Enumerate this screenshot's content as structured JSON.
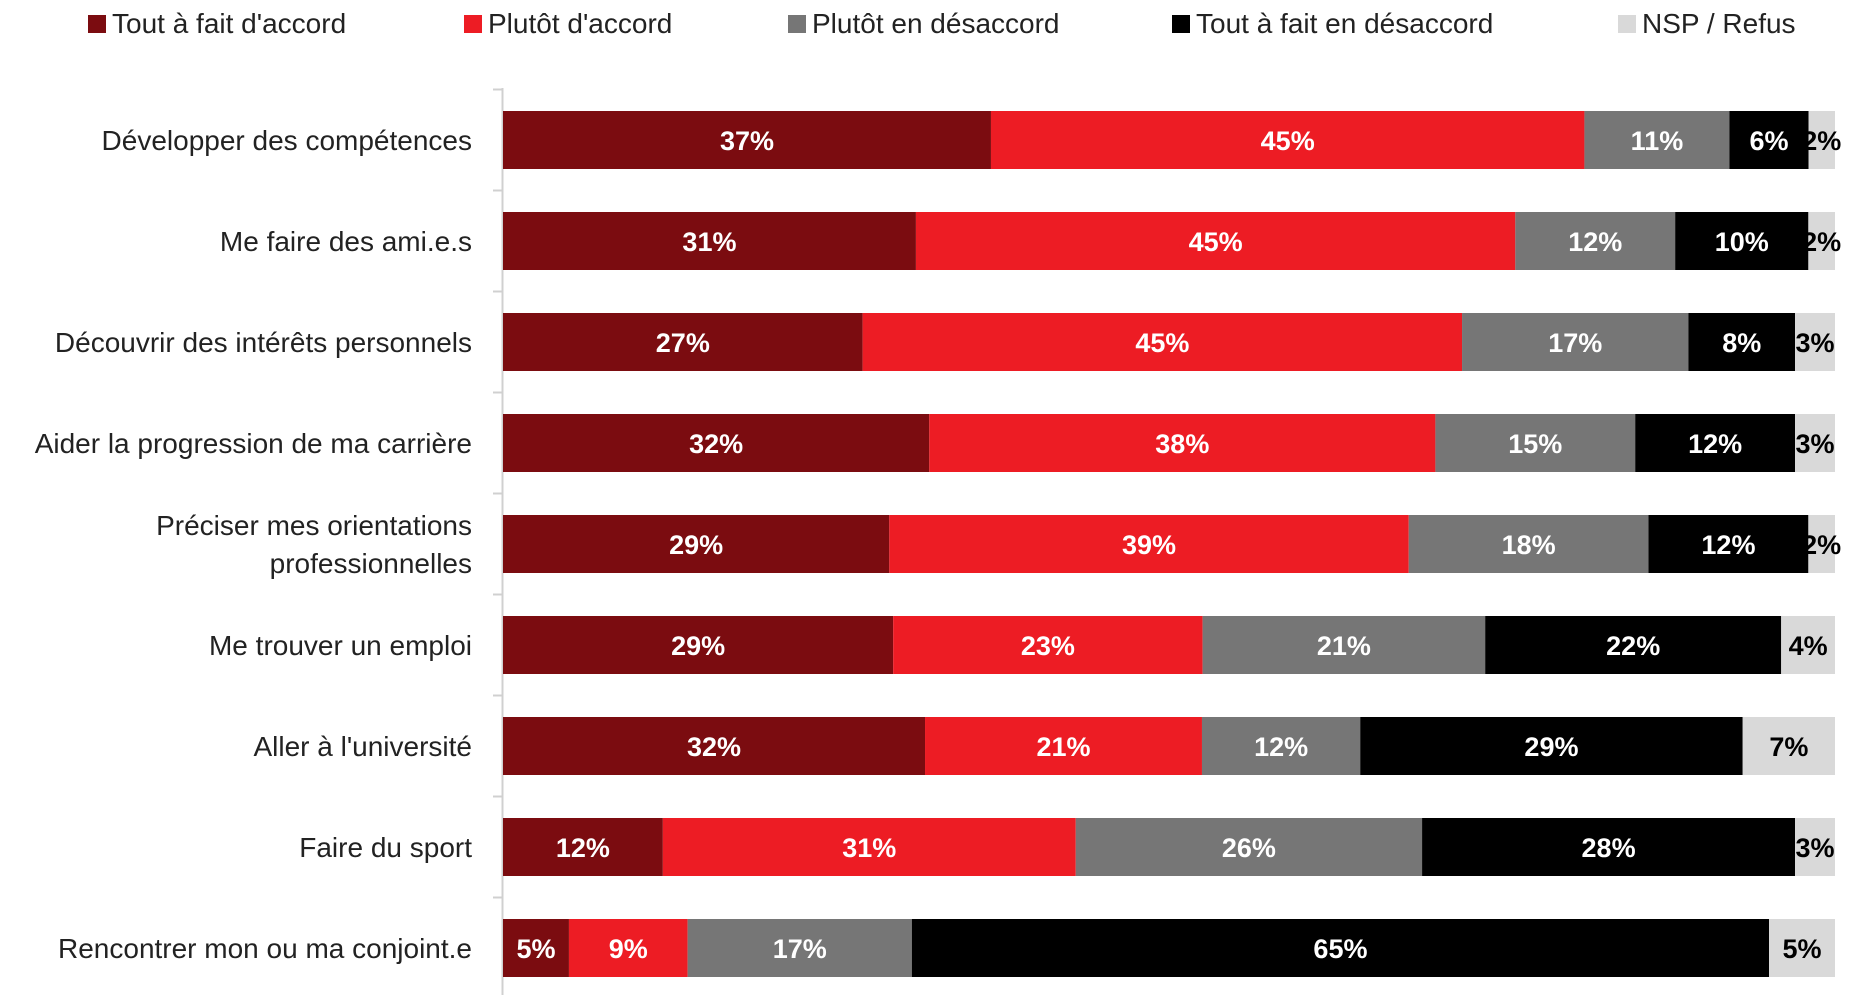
{
  "chart_data": {
    "type": "bar",
    "orientation": "horizontal",
    "stacked": true,
    "legend_position": "top",
    "series": [
      {
        "name": "Tout à fait d'accord",
        "color": "#7b0c10",
        "label_color": "#ffffff",
        "values": [
          37,
          31,
          27,
          32,
          29,
          29,
          32,
          12,
          5
        ]
      },
      {
        "name": "Plutôt d'accord",
        "color": "#ed1c24",
        "label_color": "#ffffff",
        "values": [
          45,
          45,
          45,
          38,
          39,
          23,
          21,
          31,
          9
        ]
      },
      {
        "name": "Plutôt en désaccord",
        "color": "#767676",
        "label_color": "#ffffff",
        "values": [
          11,
          12,
          17,
          15,
          18,
          21,
          12,
          26,
          17
        ]
      },
      {
        "name": "Tout à fait en désaccord",
        "color": "#000000",
        "label_color": "#ffffff",
        "values": [
          6,
          10,
          8,
          12,
          12,
          22,
          29,
          28,
          65
        ]
      },
      {
        "name": "NSP / Refus",
        "color": "#d9d9d9",
        "label_color": "#000000",
        "values": [
          2,
          2,
          3,
          3,
          2,
          4,
          7,
          3,
          5
        ]
      }
    ],
    "categories": [
      [
        "Développer des compétences"
      ],
      [
        "Me faire des ami.e.s"
      ],
      [
        "Découvrir des intérêts personnels"
      ],
      [
        "Aider la progression de ma carrière"
      ],
      [
        "Préciser mes orientations",
        "professionnelles"
      ],
      [
        "Me trouver un emploi"
      ],
      [
        "Aller à l'université"
      ],
      [
        "Faire du sport"
      ],
      [
        "Rencontrer mon ou ma conjoint.e"
      ]
    ],
    "value_suffix": "%"
  }
}
